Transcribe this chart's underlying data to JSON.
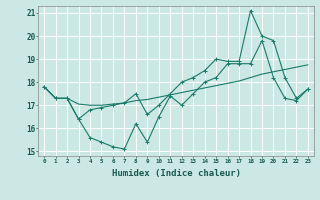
{
  "xlabel": "Humidex (Indice chaleur)",
  "bg_color": "#cce8e4",
  "grid_color": "#ffffff",
  "line_color": "#1a7a6a",
  "xlim": [
    -0.5,
    23.5
  ],
  "ylim": [
    14.8,
    21.3
  ],
  "xtick_labels": [
    "0",
    "1",
    "2",
    "3",
    "4",
    "5",
    "6",
    "7",
    "8",
    "9",
    "10",
    "11",
    "12",
    "13",
    "14",
    "15",
    "16",
    "17",
    "18",
    "19",
    "20",
    "21",
    "22",
    "23"
  ],
  "ytick_labels": [
    "15",
    "16",
    "17",
    "18",
    "19",
    "20",
    "21"
  ],
  "ytick_vals": [
    15,
    16,
    17,
    18,
    19,
    20,
    21
  ],
  "series1_y": [
    17.8,
    17.3,
    17.3,
    16.4,
    15.6,
    15.4,
    15.2,
    15.1,
    16.2,
    15.4,
    16.5,
    17.4,
    17.0,
    17.5,
    18.0,
    18.2,
    18.8,
    18.8,
    18.8,
    19.8,
    18.2,
    17.3,
    17.2,
    17.7
  ],
  "series2_y": [
    17.8,
    17.3,
    17.3,
    17.05,
    17.0,
    17.0,
    17.05,
    17.1,
    17.2,
    17.25,
    17.35,
    17.45,
    17.55,
    17.65,
    17.75,
    17.85,
    17.95,
    18.05,
    18.2,
    18.35,
    18.45,
    18.55,
    18.65,
    18.75
  ],
  "series3_y": [
    17.8,
    17.3,
    17.3,
    16.4,
    16.8,
    16.9,
    17.0,
    17.1,
    17.5,
    16.6,
    17.0,
    17.5,
    18.0,
    18.2,
    18.5,
    19.0,
    18.9,
    18.9,
    21.1,
    20.0,
    19.8,
    18.2,
    17.3,
    17.7
  ]
}
